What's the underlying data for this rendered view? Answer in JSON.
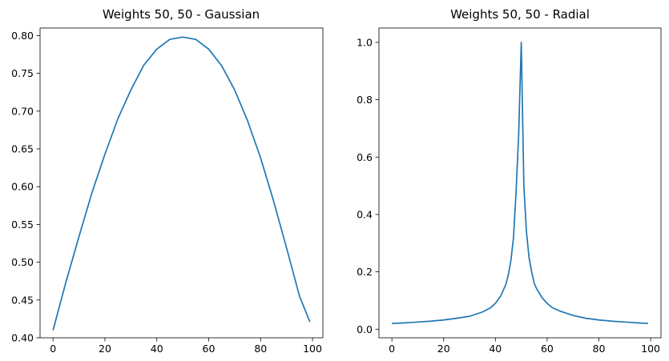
{
  "chart_data": [
    {
      "type": "line",
      "title": "Weights 50, 50 - Gaussian",
      "xlabel": "",
      "ylabel": "",
      "xlim": [
        -5,
        104
      ],
      "ylim": [
        0.4,
        0.81
      ],
      "xticks": [
        0,
        20,
        40,
        60,
        80,
        100
      ],
      "yticks": [
        0.4,
        0.45,
        0.5,
        0.55,
        0.6,
        0.65,
        0.7,
        0.75,
        0.8
      ],
      "ytick_labels": [
        "0.40",
        "0.45",
        "0.50",
        "0.55",
        "0.60",
        "0.65",
        "0.70",
        "0.75",
        "0.80"
      ],
      "grid": false,
      "series": [
        {
          "color": "#1f77b4",
          "x": [
            0,
            5,
            10,
            15,
            20,
            25,
            30,
            35,
            40,
            45,
            50,
            55,
            60,
            65,
            70,
            75,
            80,
            85,
            90,
            95,
            99
          ],
          "y": [
            0.41,
            0.474,
            0.534,
            0.592,
            0.643,
            0.69,
            0.728,
            0.761,
            0.782,
            0.795,
            0.798,
            0.795,
            0.782,
            0.76,
            0.728,
            0.687,
            0.638,
            0.581,
            0.519,
            0.455,
            0.421
          ]
        }
      ]
    },
    {
      "type": "line",
      "title": "Weights 50, 50 - Radial",
      "xlabel": "",
      "ylabel": "",
      "xlim": [
        -5,
        104
      ],
      "ylim": [
        -0.03,
        1.05
      ],
      "xticks": [
        0,
        20,
        40,
        60,
        80,
        100
      ],
      "yticks": [
        0.0,
        0.2,
        0.4,
        0.6,
        0.8,
        1.0
      ],
      "ytick_labels": [
        "0.0",
        "0.2",
        "0.4",
        "0.6",
        "0.8",
        "1.0"
      ],
      "grid": false,
      "series": [
        {
          "color": "#1f77b4",
          "x": [
            0,
            5,
            10,
            15,
            20,
            25,
            30,
            35,
            38,
            40,
            42,
            44,
            45,
            46,
            47,
            48,
            49,
            50,
            51,
            52,
            53,
            54,
            55,
            56,
            58,
            60,
            62,
            65,
            70,
            75,
            80,
            85,
            90,
            95,
            99
          ],
          "y": [
            0.02,
            0.022,
            0.025,
            0.028,
            0.032,
            0.038,
            0.045,
            0.06,
            0.074,
            0.09,
            0.115,
            0.155,
            0.19,
            0.24,
            0.32,
            0.48,
            0.68,
            1.0,
            0.5,
            0.34,
            0.25,
            0.2,
            0.16,
            0.14,
            0.11,
            0.09,
            0.075,
            0.063,
            0.048,
            0.038,
            0.032,
            0.028,
            0.025,
            0.022,
            0.02
          ]
        }
      ]
    }
  ]
}
